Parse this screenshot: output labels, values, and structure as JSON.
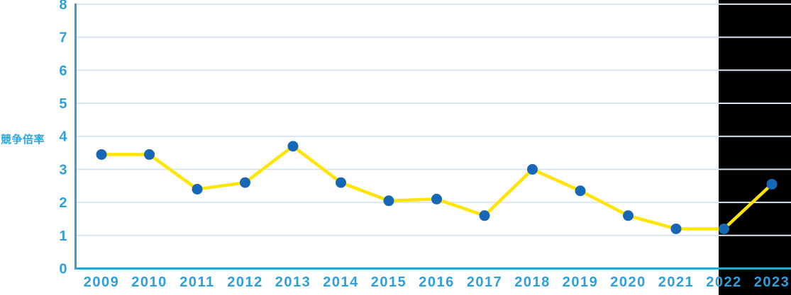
{
  "chart_data": {
    "type": "line",
    "title": "",
    "xlabel": "",
    "ylabel": "競争倍率",
    "categories": [
      "2009",
      "2010",
      "2011",
      "2012",
      "2013",
      "2014",
      "2015",
      "2016",
      "2017",
      "2018",
      "2019",
      "2020",
      "2021",
      "2022",
      "2023"
    ],
    "series": [
      {
        "name": "競争倍率",
        "values": [
          3.45,
          3.45,
          2.4,
          2.6,
          3.7,
          2.6,
          2.05,
          2.1,
          1.6,
          3.0,
          2.35,
          1.6,
          1.2,
          1.2,
          2.55
        ]
      }
    ],
    "ylim": [
      0,
      8
    ],
    "yticks": [
      0,
      1,
      2,
      3,
      4,
      5,
      6,
      7,
      8
    ],
    "grid": true,
    "legend": "none",
    "colors": {
      "line": "#ffe500",
      "marker": "#1667b5",
      "axis": "#3b9cd9",
      "gridline": "#dae5f1",
      "tick_label": "#2f9fdc",
      "axis_title": "#29a7e2",
      "background": "#ffffff",
      "right_panel": "#000000"
    }
  }
}
